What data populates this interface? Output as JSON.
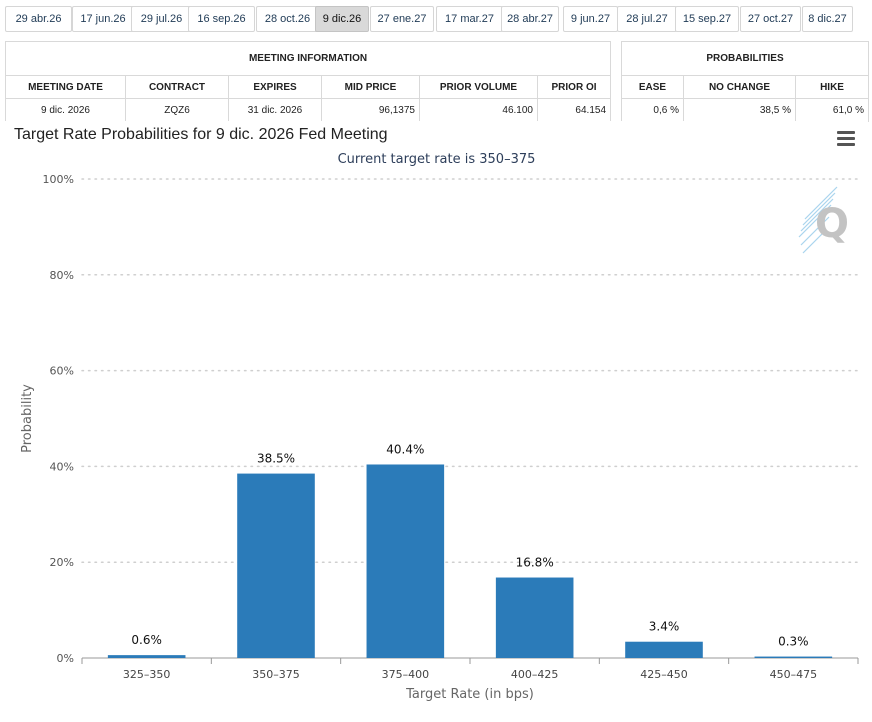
{
  "date_tabs": [
    {
      "label": "29 abr.26",
      "active": false
    },
    {
      "label": "17 jun.26",
      "active": false
    },
    {
      "label": "29 jul.26",
      "active": false
    },
    {
      "label": "16 sep.26",
      "active": false
    },
    {
      "label": "28 oct.26",
      "active": false
    },
    {
      "label": "9 dic.26",
      "active": true
    },
    {
      "label": "27 ene.27",
      "active": false
    },
    {
      "label": "17 mar.27",
      "active": false
    },
    {
      "label": "28 abr.27",
      "active": false
    },
    {
      "label": "9 jun.27",
      "active": false
    },
    {
      "label": "28 jul.27",
      "active": false
    },
    {
      "label": "15 sep.27",
      "active": false
    },
    {
      "label": "27 oct.27",
      "active": false
    },
    {
      "label": "8 dic.27",
      "active": false
    }
  ],
  "meeting_info": {
    "title": "MEETING INFORMATION",
    "headers": [
      "MEETING DATE",
      "CONTRACT",
      "EXPIRES",
      "MID PRICE",
      "PRIOR VOLUME",
      "PRIOR OI"
    ],
    "values": [
      "9 dic. 2026",
      "ZQZ6",
      "31 dic. 2026",
      "96,1375",
      "46.100",
      "64.154"
    ]
  },
  "probabilities": {
    "title": "PROBABILITIES",
    "headers": [
      "EASE",
      "NO CHANGE",
      "HIKE"
    ],
    "values": [
      "0,6 %",
      "38,5 %",
      "61,0 %"
    ]
  },
  "chart": {
    "title": "Target Rate Probabilities for 9 dic. 2026 Fed Meeting",
    "subtitle": "Current target rate is 350–375",
    "menu_icon": "hamburger-menu-icon",
    "watermark_icon": "q-logo-icon",
    "bar_color": "#2b7bb9"
  },
  "chart_data": {
    "type": "bar",
    "categories": [
      "325–350",
      "350–375",
      "375–400",
      "400–425",
      "425–450",
      "450–475"
    ],
    "values": [
      0.6,
      38.5,
      40.4,
      16.8,
      3.4,
      0.3
    ],
    "data_labels": [
      "0.6%",
      "38.5%",
      "40.4%",
      "16.8%",
      "3.4%",
      "0.3%"
    ],
    "title": "Target Rate Probabilities for 9 dic. 2026 Fed Meeting",
    "subtitle": "Current target rate is 350–375",
    "xlabel": "Target Rate (in bps)",
    "ylabel": "Probability",
    "ylim": [
      0,
      100
    ],
    "yticks": [
      0,
      20,
      40,
      60,
      80,
      100
    ],
    "ytick_labels": [
      "0%",
      "20%",
      "40%",
      "60%",
      "80%",
      "100%"
    ],
    "grid": true,
    "legend": false
  }
}
